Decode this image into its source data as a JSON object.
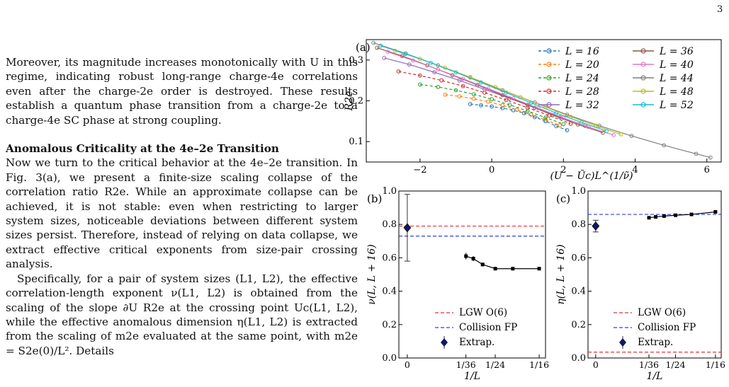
{
  "page_number": "3",
  "text": {
    "p1": "Moreover, its magnitude increases monotonically with U in this regime, indicating robust long-range charge-4e correlations even after the charge-2e order is destroyed. These results establish a quantum phase transition from a charge-2e to a charge-4e SC phase at strong coupling.",
    "heading": "Anomalous Criticality at the 4e–2e Transition",
    "p2": "Now we turn to the critical behavior at the 4e–2e transition. In Fig. 3(a), we present a finite-size scaling collapse of the correlation ratio R2e. While an approximate collapse can be achieved, it is not stable: even when restricting to larger system sizes, noticeable deviations between different system sizes persist. Therefore, instead of relying on data collapse, we extract effective critical exponents from size-pair crossing analysis.",
    "p3": "Specifically, for a pair of system sizes (L1, L2), the effective correlation-length exponent ν(L1, L2) is obtained from the scaling of the slope ∂U R2e at the crossing point Uc(L1, L2), while the effective anomalous dimension η(L1, L2) is extracted from the scaling of m2e evaluated at the same point, with m2e = S2e(0)/L². Details"
  },
  "figure": {
    "panel_a": {
      "label": "(a)",
      "ylabel": "R2e",
      "xlabel": "(U − Ũc)L^(1/ν̃)",
      "legend": [
        {
          "name": "L = 16",
          "color": "#1f77b4",
          "style": "dashed"
        },
        {
          "name": "L = 20",
          "color": "#ff7f0e",
          "style": "dashed"
        },
        {
          "name": "L = 24",
          "color": "#2ca02c",
          "style": "dashed"
        },
        {
          "name": "L = 28",
          "color": "#d62728",
          "style": "dashed"
        },
        {
          "name": "L = 32",
          "color": "#9467bd",
          "style": "solid"
        },
        {
          "name": "L = 36",
          "color": "#8c564b",
          "style": "solid"
        },
        {
          "name": "L = 40",
          "color": "#e377c2",
          "style": "solid"
        },
        {
          "name": "L = 44",
          "color": "#7f7f7f",
          "style": "solid"
        },
        {
          "name": "L = 48",
          "color": "#bcbd22",
          "style": "solid"
        },
        {
          "name": "L = 52",
          "color": "#17becf",
          "style": "solid"
        }
      ],
      "xticks": [
        "−2",
        "0",
        "2",
        "4",
        "6"
      ],
      "yticks": [
        "0.1",
        "0.2",
        "0.3"
      ]
    },
    "panel_b": {
      "label": "(b)",
      "ylabel": "ν(L, L + 16)",
      "xlabel": "1/L",
      "xticks": [
        "0",
        "1/36",
        "1/24",
        "1/16"
      ],
      "yticks": [
        "0.0",
        "0.2",
        "0.4",
        "0.6",
        "0.8",
        "1.0"
      ],
      "legend": [
        "LGW O(6)",
        "Collision FP",
        "Extrap."
      ]
    },
    "panel_c": {
      "label": "(c)",
      "ylabel": "η(L, L + 16)",
      "xlabel": "1/L",
      "xticks": [
        "0",
        "1/36",
        "1/24",
        "1/16"
      ],
      "yticks": [
        "0.0",
        "0.2",
        "0.4",
        "0.6",
        "0.8",
        "1.0"
      ],
      "legend": [
        "LGW O(6)",
        "Collision FP",
        "Extrap."
      ]
    }
  },
  "chart_data": [
    {
      "type": "line",
      "panel": "(a)",
      "xlabel": "(U − Ũc)L^(1/ν̃)",
      "ylabel": "R2e",
      "xlim": [
        -3.5,
        6.4
      ],
      "ylim": [
        0.05,
        0.35
      ],
      "legend_position": "top-right",
      "series": [
        {
          "name": "L = 16",
          "x": [
            -0.6,
            -0.3,
            0.0,
            0.3,
            0.6,
            0.9,
            1.2,
            1.5,
            1.8,
            2.1
          ],
          "y": [
            0.192,
            0.189,
            0.186,
            0.182,
            0.177,
            0.17,
            0.16,
            0.15,
            0.138,
            0.128
          ]
        },
        {
          "name": "L = 20",
          "x": [
            -1.3,
            -0.9,
            -0.5,
            -0.1,
            0.3,
            0.7,
            1.1,
            1.5,
            1.9
          ],
          "y": [
            0.215,
            0.211,
            0.205,
            0.198,
            0.189,
            0.178,
            0.166,
            0.153,
            0.14
          ]
        },
        {
          "name": "L = 24",
          "x": [
            -2.0,
            -1.5,
            -1.0,
            -0.5,
            0.0,
            0.5,
            1.0,
            1.5,
            2.0
          ],
          "y": [
            0.24,
            0.234,
            0.226,
            0.216,
            0.204,
            0.19,
            0.175,
            0.159,
            0.143
          ]
        },
        {
          "name": "L = 28",
          "x": [
            -2.6,
            -2.0,
            -1.4,
            -0.8,
            -0.2,
            0.4,
            1.0,
            1.6,
            2.2
          ],
          "y": [
            0.272,
            0.262,
            0.25,
            0.236,
            0.22,
            0.202,
            0.183,
            0.164,
            0.144
          ]
        },
        {
          "name": "L = 32",
          "x": [
            -3.0,
            -2.3,
            -1.6,
            -0.9,
            -0.2,
            0.5,
            1.2,
            1.9,
            2.6
          ],
          "y": [
            0.305,
            0.289,
            0.27,
            0.25,
            0.228,
            0.206,
            0.183,
            0.16,
            0.139
          ]
        },
        {
          "name": "L = 36",
          "x": [
            -3.2,
            -2.5,
            -1.8,
            -1.1,
            -0.4,
            0.3,
            1.0,
            1.7,
            2.4,
            3.1
          ],
          "y": [
            0.33,
            0.31,
            0.287,
            0.263,
            0.239,
            0.214,
            0.19,
            0.165,
            0.142,
            0.122
          ]
        },
        {
          "name": "L = 40",
          "x": [
            -2.9,
            -2.2,
            -1.5,
            -0.8,
            -0.1,
            0.6,
            1.3,
            2.0,
            2.7,
            3.4
          ],
          "y": [
            0.32,
            0.299,
            0.277,
            0.254,
            0.23,
            0.206,
            0.182,
            0.158,
            0.136,
            0.116
          ]
        },
        {
          "name": "L = 44",
          "x": [
            -3.3,
            -2.4,
            -1.5,
            -0.6,
            0.3,
            1.2,
            2.1,
            3.0,
            3.9,
            4.8,
            5.7,
            6.1
          ],
          "y": [
            0.342,
            0.316,
            0.287,
            0.257,
            0.226,
            0.196,
            0.166,
            0.139,
            0.114,
            0.091,
            0.07,
            0.061
          ]
        },
        {
          "name": "L = 48",
          "x": [
            -2.7,
            -2.0,
            -1.3,
            -0.6,
            0.1,
            0.8,
            1.5,
            2.2,
            2.9,
            3.6
          ],
          "y": [
            0.323,
            0.303,
            0.281,
            0.258,
            0.234,
            0.209,
            0.185,
            0.161,
            0.139,
            0.118
          ]
        },
        {
          "name": "L = 52",
          "x": [
            -3.1,
            -2.4,
            -1.7,
            -1.0,
            -0.3,
            0.4,
            1.1,
            1.8,
            2.5,
            3.2
          ],
          "y": [
            0.335,
            0.315,
            0.293,
            0.27,
            0.245,
            0.22,
            0.195,
            0.17,
            0.147,
            0.126
          ]
        }
      ]
    },
    {
      "type": "scatter",
      "panel": "(b)",
      "xlabel": "1/L",
      "ylabel": "ν(L, L + 16)",
      "xlim": [
        -0.004,
        0.0655
      ],
      "ylim": [
        0.0,
        1.0
      ],
      "series": [
        {
          "name": "data",
          "x": [
            0.0278,
            0.0313,
            0.0357,
            0.0417,
            0.05,
            0.0625
          ],
          "y": [
            0.61,
            0.595,
            0.56,
            0.535,
            0.535,
            0.535
          ],
          "yerr": [
            0.02,
            0.015,
            0.012,
            0.01,
            0.01,
            0.01
          ]
        },
        {
          "name": "Extrap.",
          "x": [
            0.0
          ],
          "y": [
            0.78
          ],
          "yerr": [
            0.2
          ]
        }
      ],
      "hlines": [
        {
          "name": "LGW O(6)",
          "y": 0.79,
          "color": "#e8323a"
        },
        {
          "name": "Collision FP",
          "y": 0.73,
          "color": "#2c3ee0"
        }
      ],
      "legend_position": "bottom-right"
    },
    {
      "type": "scatter",
      "panel": "(c)",
      "xlabel": "1/L",
      "ylabel": "η(L, L + 16)",
      "xlim": [
        -0.004,
        0.0655
      ],
      "ylim": [
        0.0,
        1.0
      ],
      "series": [
        {
          "name": "data",
          "x": [
            0.0278,
            0.0313,
            0.0357,
            0.0417,
            0.05,
            0.0625
          ],
          "y": [
            0.84,
            0.845,
            0.85,
            0.855,
            0.86,
            0.875
          ],
          "yerr": [
            0.008,
            0.008,
            0.008,
            0.008,
            0.008,
            0.01
          ]
        },
        {
          "name": "Extrap.",
          "x": [
            0.0
          ],
          "y": [
            0.79
          ],
          "yerr": [
            0.035
          ]
        }
      ],
      "hlines": [
        {
          "name": "LGW O(6)",
          "y": 0.035,
          "color": "#e8323a"
        },
        {
          "name": "Collision FP",
          "y": 0.86,
          "color": "#2c3ee0"
        }
      ],
      "legend_position": "bottom-right"
    }
  ]
}
